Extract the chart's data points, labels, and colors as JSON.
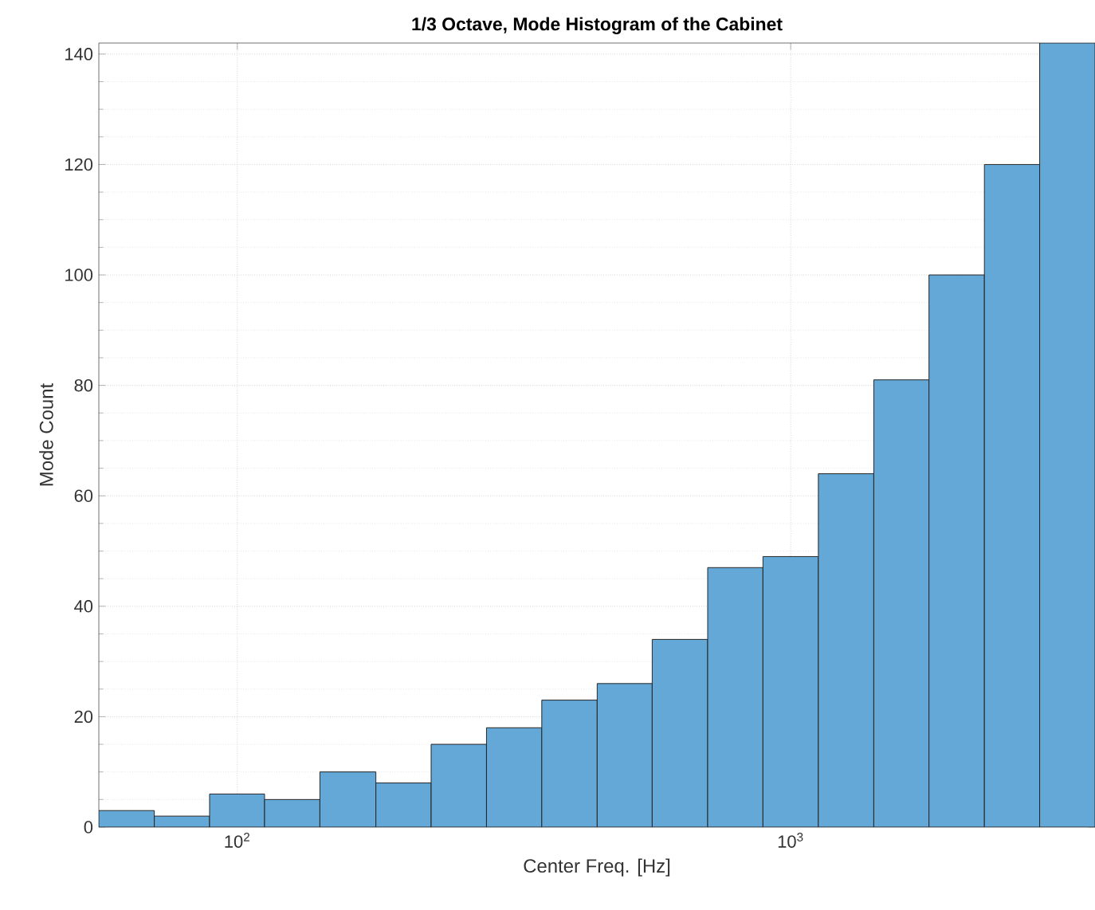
{
  "chart_data": {
    "type": "histogram",
    "title": "1/3 Octave, Mode Histogram of the Cabinet",
    "xlabel": "Center Freq. [Hz]",
    "ylabel": "Mode Count",
    "bins": [
      56.2,
      70.8,
      89.1,
      112,
      141,
      178,
      224,
      282,
      355,
      447,
      562,
      708,
      891,
      1122,
      1413,
      1778,
      2239,
      2818,
      3548
    ],
    "values": [
      3,
      2,
      6,
      5,
      10,
      8,
      15,
      18,
      23,
      26,
      34,
      47,
      49,
      64,
      81,
      100,
      120,
      142
    ],
    "color": "#63a8d7",
    "log": "x",
    "xlim": [
      56.2,
      3548
    ],
    "ylim": [
      0,
      142
    ],
    "xticks": [
      {
        "value": 100,
        "label": "10$^{2}$"
      },
      {
        "value": 1000,
        "label": "10$^{3}$"
      }
    ],
    "yticks": [
      0,
      20,
      40,
      60,
      80,
      100,
      120,
      140
    ],
    "grid": true
  }
}
